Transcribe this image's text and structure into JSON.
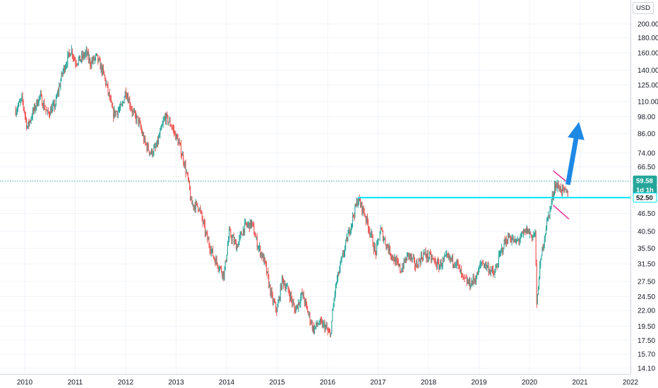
{
  "header": {
    "currency": "USD"
  },
  "price_badges": {
    "last": "59.58",
    "interval": "1d 1h",
    "level": "52.50"
  },
  "colors": {
    "up": "#26a69a",
    "down": "#ef5350",
    "resistance_line": "#00e5ff",
    "flag_lines": "#e91e90",
    "arrow": "#1e88e5",
    "last_price_badge": "#26a69a",
    "level_badge": "#00e5ff"
  },
  "chart_data": {
    "type": "candlestick",
    "x_axis": {
      "ticks": [
        "2010",
        "2011",
        "2012",
        "2013",
        "2014",
        "2015",
        "2016",
        "2017",
        "2018",
        "2019",
        "2020",
        "2021",
        "2022"
      ]
    },
    "y_axis": {
      "scale": "log",
      "range": [
        13.5,
        215
      ],
      "ticks": [
        "200.00",
        "180.00",
        "160.00",
        "140.00",
        "125.00",
        "110.00",
        "98.00",
        "86.00",
        "74.00",
        "66.50",
        "59.50",
        "52.50",
        "46.50",
        "40.50",
        "35.50",
        "31.50",
        "27.50",
        "24.50",
        "22.00",
        "19.50",
        "17.50",
        "15.70",
        "14.10"
      ]
    },
    "last_price": 59.58,
    "horizontal_level": {
      "value": 52.5,
      "from": 2016.6
    },
    "flag": {
      "upper": [
        [
          2020.47,
          64.5
        ],
        [
          2020.78,
          58.5
        ]
      ],
      "lower": [
        [
          2020.47,
          49.5
        ],
        [
          2020.78,
          44.5
        ]
      ]
    },
    "arrow": {
      "from": [
        2020.76,
        58
      ],
      "to": [
        2020.98,
        94
      ]
    },
    "path": [
      [
        2009.82,
        103
      ],
      [
        2009.95,
        112
      ],
      [
        2010.05,
        90
      ],
      [
        2010.15,
        100
      ],
      [
        2010.3,
        115
      ],
      [
        2010.45,
        100
      ],
      [
        2010.6,
        107
      ],
      [
        2010.75,
        138
      ],
      [
        2010.92,
        165
      ],
      [
        2011.0,
        150
      ],
      [
        2011.1,
        152
      ],
      [
        2011.22,
        160
      ],
      [
        2011.3,
        148
      ],
      [
        2011.42,
        155
      ],
      [
        2011.55,
        138
      ],
      [
        2011.62,
        125
      ],
      [
        2011.75,
        100
      ],
      [
        2011.92,
        105
      ],
      [
        2012.0,
        120
      ],
      [
        2012.15,
        100
      ],
      [
        2012.25,
        95
      ],
      [
        2012.38,
        80
      ],
      [
        2012.5,
        74
      ],
      [
        2012.6,
        77
      ],
      [
        2012.78,
        98
      ],
      [
        2012.9,
        92
      ],
      [
        2013.05,
        80
      ],
      [
        2013.15,
        70
      ],
      [
        2013.25,
        58
      ],
      [
        2013.3,
        50
      ],
      [
        2013.45,
        49
      ],
      [
        2013.6,
        39
      ],
      [
        2013.75,
        33
      ],
      [
        2013.95,
        29
      ],
      [
        2014.05,
        40
      ],
      [
        2014.2,
        36
      ],
      [
        2014.35,
        42
      ],
      [
        2014.5,
        43
      ],
      [
        2014.6,
        37
      ],
      [
        2014.75,
        32
      ],
      [
        2014.9,
        24
      ],
      [
        2015.0,
        22
      ],
      [
        2015.1,
        28
      ],
      [
        2015.25,
        25
      ],
      [
        2015.35,
        22
      ],
      [
        2015.5,
        25
      ],
      [
        2015.6,
        22
      ],
      [
        2015.72,
        19
      ],
      [
        2015.82,
        20
      ],
      [
        2015.95,
        19.5
      ],
      [
        2016.05,
        18
      ],
      [
        2016.15,
        26
      ],
      [
        2016.25,
        31
      ],
      [
        2016.45,
        42
      ],
      [
        2016.6,
        52
      ],
      [
        2016.72,
        47
      ],
      [
        2016.85,
        40
      ],
      [
        2016.95,
        34
      ],
      [
        2017.05,
        41
      ],
      [
        2017.15,
        37
      ],
      [
        2017.3,
        33
      ],
      [
        2017.45,
        30
      ],
      [
        2017.6,
        34
      ],
      [
        2017.75,
        31
      ],
      [
        2017.9,
        34
      ],
      [
        2018.05,
        33
      ],
      [
        2018.2,
        31
      ],
      [
        2018.35,
        33
      ],
      [
        2018.55,
        32
      ],
      [
        2018.68,
        28
      ],
      [
        2018.82,
        27
      ],
      [
        2018.95,
        28.5
      ],
      [
        2019.05,
        32
      ],
      [
        2019.15,
        31
      ],
      [
        2019.3,
        29
      ],
      [
        2019.42,
        34
      ],
      [
        2019.5,
        37
      ],
      [
        2019.6,
        39
      ],
      [
        2019.72,
        37
      ],
      [
        2019.85,
        39
      ],
      [
        2019.95,
        41
      ],
      [
        2020.05,
        39
      ],
      [
        2020.12,
        40
      ],
      [
        2020.14,
        22
      ],
      [
        2020.18,
        28
      ],
      [
        2020.25,
        35
      ],
      [
        2020.35,
        44
      ],
      [
        2020.42,
        49
      ],
      [
        2020.5,
        58
      ],
      [
        2020.58,
        57
      ],
      [
        2020.68,
        55
      ],
      [
        2020.76,
        54
      ]
    ]
  }
}
